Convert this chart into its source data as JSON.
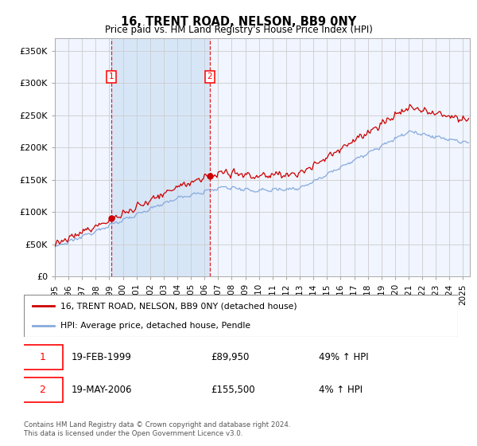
{
  "title": "16, TRENT ROAD, NELSON, BB9 0NY",
  "subtitle": "Price paid vs. HM Land Registry's House Price Index (HPI)",
  "ylim": [
    0,
    370000
  ],
  "xlim_start": 1995.0,
  "xlim_end": 2025.5,
  "purchase1_date": 1999.13,
  "purchase1_price": 89950,
  "purchase2_date": 2006.38,
  "purchase2_price": 155500,
  "legend_property": "16, TRENT ROAD, NELSON, BB9 0NY (detached house)",
  "legend_hpi": "HPI: Average price, detached house, Pendle",
  "annotation1_date": "19-FEB-1999",
  "annotation1_price": "£89,950",
  "annotation1_pct": "49% ↑ HPI",
  "annotation2_date": "19-MAY-2006",
  "annotation2_price": "£155,500",
  "annotation2_pct": "4% ↑ HPI",
  "footer": "Contains HM Land Registry data © Crown copyright and database right 2024.\nThis data is licensed under the Open Government Licence v3.0.",
  "property_color": "#cc0000",
  "hpi_color": "#88aadd",
  "shade_color": "#ddeeff",
  "background_color": "#f0f5ff",
  "plot_bg": "#ffffff"
}
